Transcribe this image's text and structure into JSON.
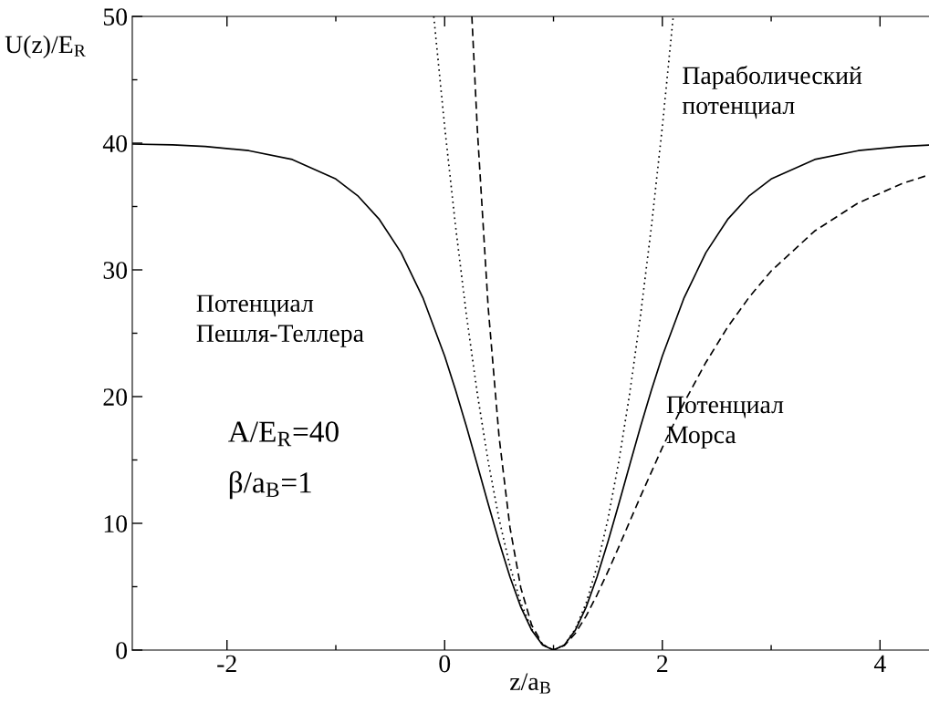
{
  "chart_data": {
    "type": "line",
    "xlabel": "z/a$_{B}$",
    "ylabel": "U(z)/E$_{R}$",
    "xlim": [
      -2.87,
      4.45
    ],
    "ylim": [
      0,
      50
    ],
    "xticks": [
      -2,
      {
        "value": -1,
        "label": null
      },
      0,
      {
        "value": 1,
        "label": null
      },
      2,
      {
        "value": 3,
        "label": null
      },
      4
    ],
    "yticks": [
      0,
      {
        "value": 5,
        "label": null
      },
      10,
      {
        "value": 15,
        "label": null
      },
      20,
      {
        "value": 25,
        "label": null
      },
      30,
      {
        "value": 35,
        "label": null
      },
      40,
      {
        "value": 45,
        "label": null
      },
      50
    ],
    "grid": false,
    "legend": false,
    "series": [
      {
        "color": "#000000",
        "line_style": "solid",
        "x": [
          -2.87,
          -2.5,
          -2.2,
          -1.8,
          -1.4,
          -1.0,
          -0.8,
          -0.6,
          -0.4,
          -0.2,
          0.0,
          0.1,
          0.2,
          0.3,
          0.4,
          0.5,
          0.6,
          0.7,
          0.8,
          0.9,
          1.0,
          1.1,
          1.2,
          1.3,
          1.4,
          1.5,
          1.6,
          1.7,
          1.8,
          1.9,
          2.0,
          2.2,
          2.4,
          2.6,
          2.8,
          3.0,
          3.4,
          3.8,
          4.2,
          4.45
        ],
        "values": [
          39.93,
          39.86,
          39.74,
          39.41,
          38.71,
          37.17,
          35.86,
          33.98,
          31.36,
          27.8,
          23.2,
          20.52,
          17.64,
          14.61,
          11.53,
          8.54,
          5.77,
          3.39,
          1.56,
          0.4,
          0,
          0.4,
          1.56,
          3.39,
          5.77,
          8.54,
          11.53,
          14.61,
          17.64,
          20.52,
          23.2,
          27.8,
          31.36,
          33.98,
          35.86,
          37.17,
          38.71,
          39.41,
          39.74,
          39.85
        ]
      },
      {
        "color": "#000000",
        "line_style": "dashed",
        "x": [
          0.25,
          0.3,
          0.4,
          0.5,
          0.6,
          0.7,
          0.8,
          0.9,
          1.0,
          1.1,
          1.2,
          1.3,
          1.4,
          1.5,
          1.6,
          1.8,
          2.0,
          2.2,
          2.4,
          2.6,
          2.8,
          3.0,
          3.4,
          3.8,
          4.2,
          4.45
        ],
        "values": [
          50,
          41.11,
          27.03,
          16.83,
          9.68,
          4.9,
          1.96,
          0.44,
          0,
          0.36,
          1.31,
          2.69,
          4.35,
          6.19,
          8.14,
          12.13,
          15.98,
          19.53,
          22.7,
          25.48,
          27.87,
          29.91,
          33.07,
          35.28,
          36.8,
          37.5
        ]
      },
      {
        "color": "#000000",
        "line_style": "dotted",
        "x": [
          -0.1,
          0.0,
          0.1,
          0.2,
          0.3,
          0.4,
          0.5,
          0.6,
          0.7,
          0.8,
          0.9,
          1.0,
          1.1,
          1.2,
          1.3,
          1.4,
          1.5,
          1.6,
          1.7,
          1.8,
          1.9,
          2.0,
          2.1
        ],
        "values": [
          50,
          41.3,
          33.45,
          26.43,
          20.24,
          14.87,
          10.33,
          6.61,
          3.72,
          1.65,
          0.41,
          0,
          0.41,
          1.65,
          3.72,
          6.61,
          10.33,
          14.87,
          20.24,
          26.43,
          33.45,
          41.3,
          50
        ]
      }
    ],
    "annotations": [
      "Параболический\nпотенциал",
      "Потенциал\nПешля-Теллера",
      "Потенциал\nМорса",
      "A/E$_{R}$=40",
      "β/a$_{B}$=1"
    ]
  }
}
